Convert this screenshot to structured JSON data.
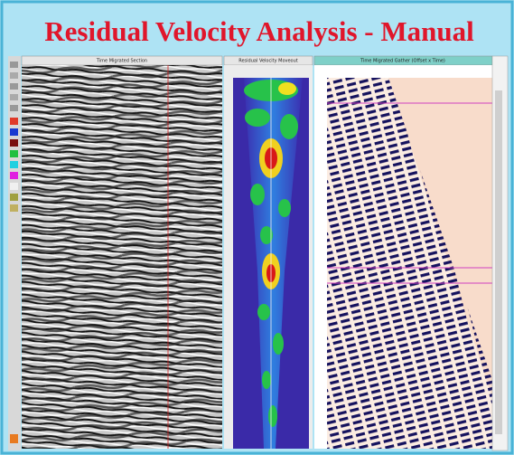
{
  "header": {
    "title": "Residual Velocity Analysis - Manual"
  },
  "panels": [
    {
      "title": "Time Migrated Section"
    },
    {
      "title": "Residual Velocity Moveout"
    },
    {
      "title": "Time Migrated Gather (Offset x Time)"
    }
  ]
}
